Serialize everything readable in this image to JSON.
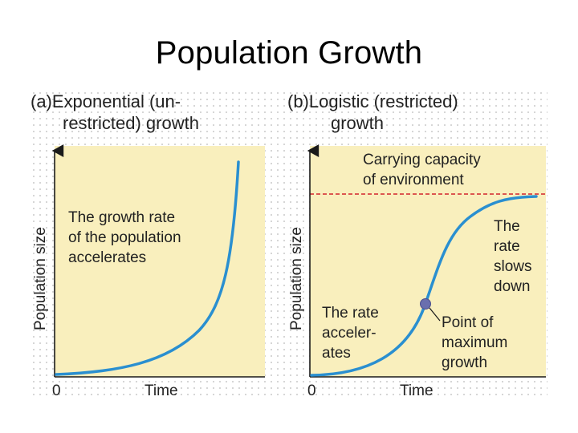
{
  "slide": {
    "title": "Population Growth"
  },
  "panel_a": {
    "heading_line1": "(a)Exponential (un-",
    "heading_line2": "restricted) growth",
    "ylabel": "Population size",
    "xlabel": "Time",
    "origin": "0",
    "note": [
      "The growth rate",
      "of the population",
      "accelerates"
    ]
  },
  "panel_b": {
    "heading_line1": "(b)Logistic (restricted)",
    "heading_line2": "growth",
    "ylabel": "Population size",
    "xlabel": "Time",
    "origin": "0",
    "carrying": [
      "Carrying capacity",
      "of environment"
    ],
    "slows": [
      "The",
      "rate",
      "slows",
      "down"
    ],
    "accel": [
      "The rate",
      "acceler-",
      "ates"
    ],
    "inflection": [
      "Point of",
      "maximum",
      "growth"
    ]
  },
  "colors": {
    "plot_bg": "#f9efbd",
    "curve": "#2a8fd0",
    "axis": "#1a1a1a",
    "capacity_line": "#d3232d",
    "inflection_point": "#6a6fae",
    "text": "#222222"
  }
}
